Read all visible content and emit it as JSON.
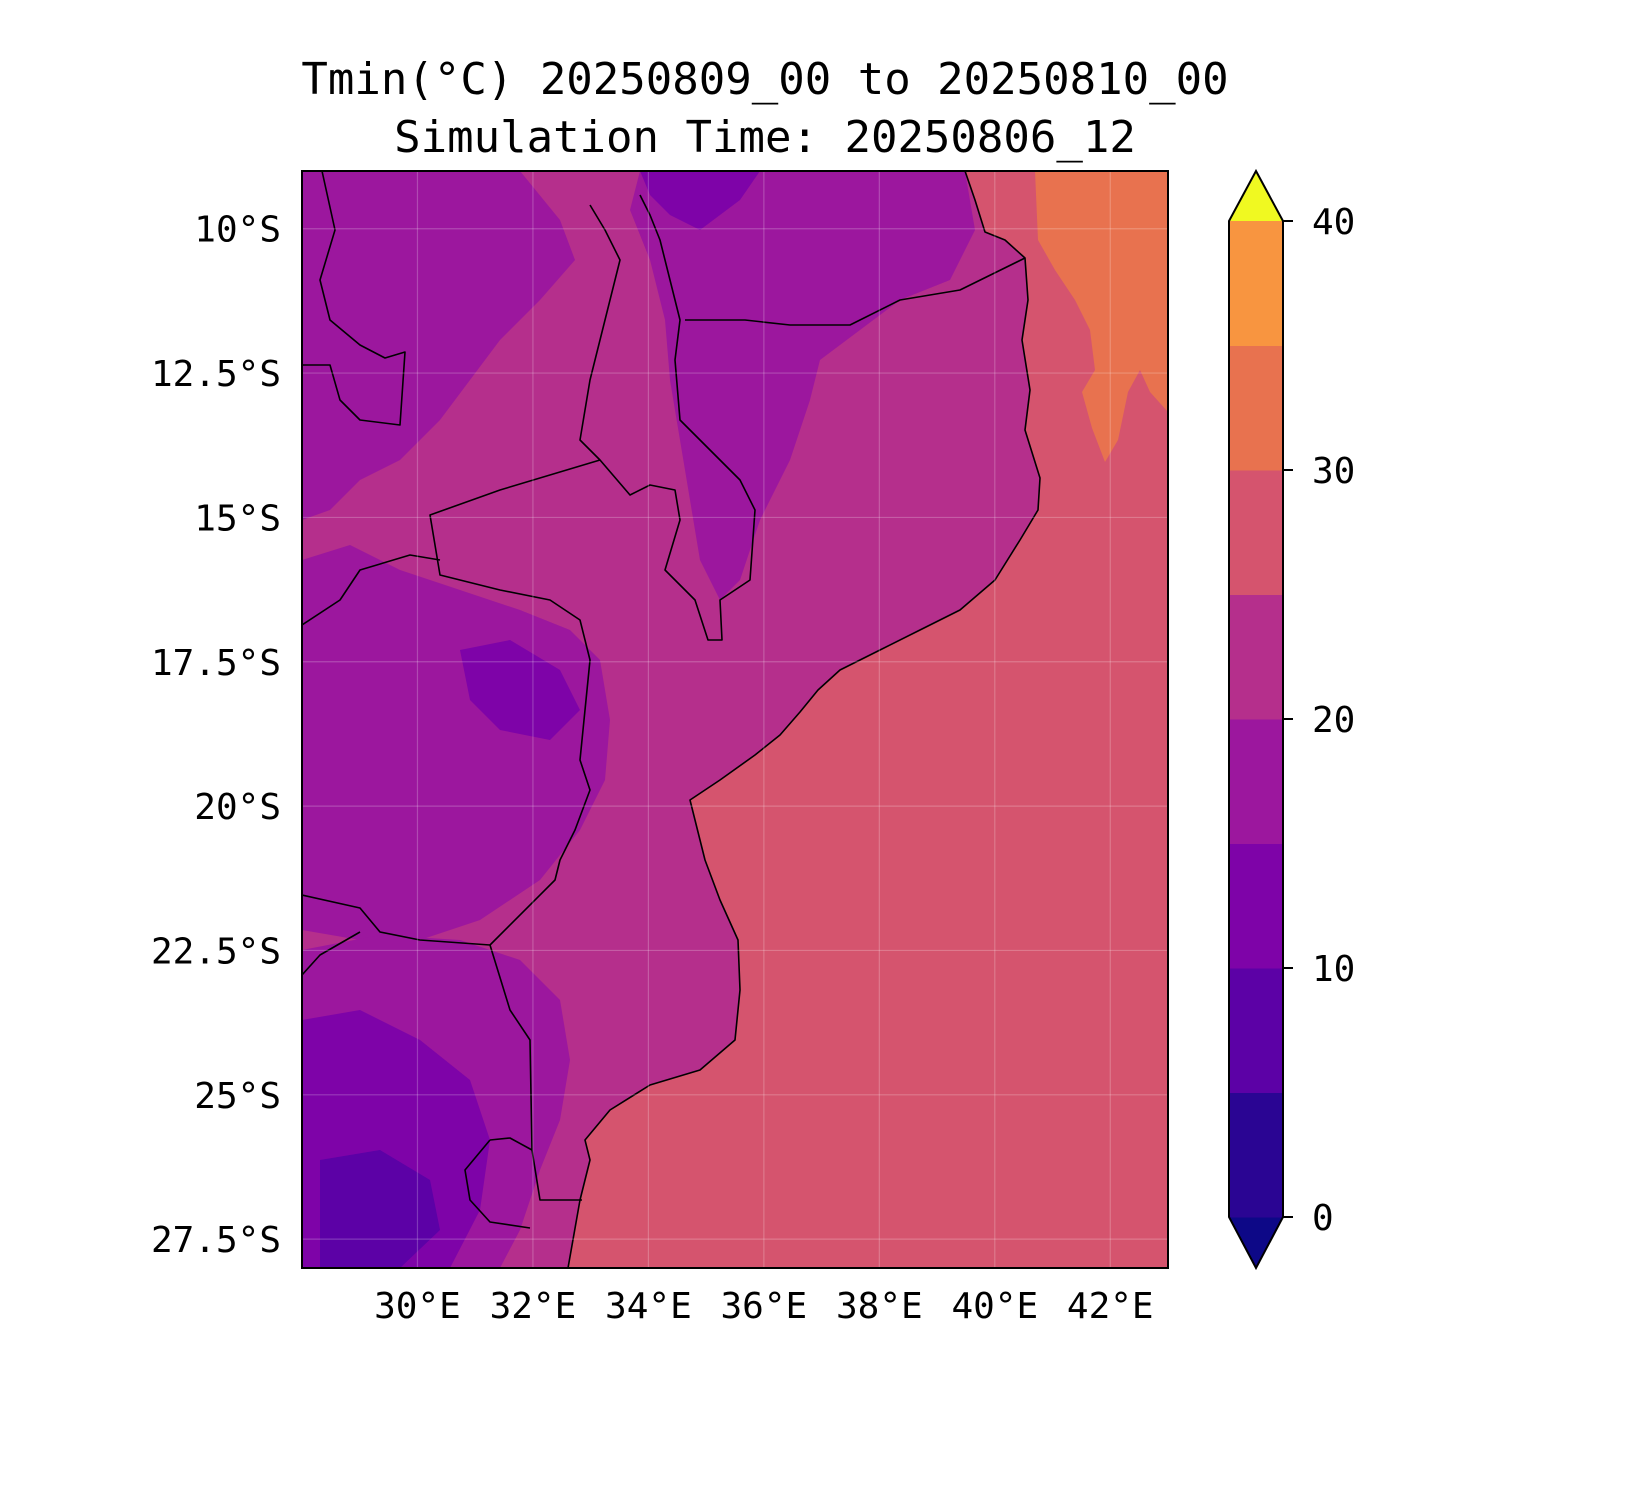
{
  "title": "Tmin(°C) 20250809_00 to 20250810_00",
  "subtitle": "Simulation Time: 20250806_12",
  "map": {
    "variable": "Tmin",
    "units": "°C",
    "extent": {
      "lon": [
        28.0,
        43.0
      ],
      "lat": [
        -28.0,
        -9.0
      ]
    },
    "lat_ticks": [
      -10,
      -12.5,
      -15,
      -17.5,
      -20,
      -22.5,
      -25,
      -27.5
    ],
    "lat_labels": [
      "10°S",
      "12.5°S",
      "15°S",
      "17.5°S",
      "20°S",
      "22.5°S",
      "25°S",
      "27.5°S"
    ],
    "lon_ticks": [
      30,
      32,
      34,
      36,
      38,
      40,
      42
    ],
    "lon_labels": [
      "30°E",
      "32°E",
      "34°E",
      "36°E",
      "38°E",
      "40°E",
      "42°E"
    ],
    "gridlines": true
  },
  "colorbar": {
    "levels": [
      -5,
      0,
      5,
      10,
      15,
      20,
      25,
      30,
      35,
      40,
      45
    ],
    "tick_values": [
      0,
      10,
      20,
      30,
      40
    ],
    "tick_labels": [
      "0",
      "10",
      "20",
      "30",
      "40"
    ],
    "colors": [
      "#0d0887",
      "#2a0593",
      "#5c01a6",
      "#7e03a8",
      "#9c179e",
      "#b52f8c",
      "#d5546e",
      "#e8724f",
      "#f89540",
      "#fdb42f",
      "#f0f921"
    ],
    "extend": "both"
  },
  "fill_colors": {
    "ocean": "#d5546e",
    "ocean_warm": "#e8724f",
    "land_mild": "#b52f8c",
    "land_cool": "#9c179e",
    "land_cold": "#7e03a8",
    "land_coldest": "#5c01a6"
  }
}
